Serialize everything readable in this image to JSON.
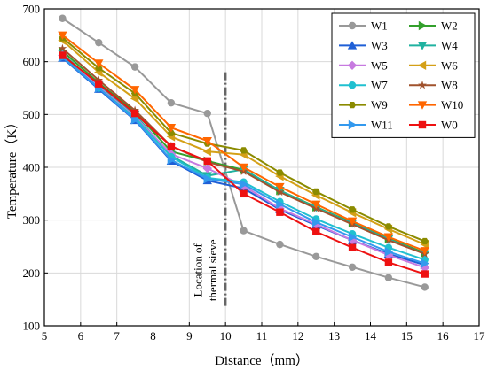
{
  "chart_data": {
    "type": "line",
    "xlabel": "Distance（mm）",
    "ylabel": "Temperature（K）",
    "xlim": [
      5,
      17
    ],
    "ylim": [
      100,
      700
    ],
    "xticks": [
      5,
      6,
      7,
      8,
      9,
      10,
      11,
      12,
      13,
      14,
      15,
      16,
      17
    ],
    "yticks": [
      100,
      200,
      300,
      400,
      500,
      600,
      700
    ],
    "grid": true,
    "legend_position": "top-right",
    "x": [
      5.5,
      6.5,
      7.5,
      8.5,
      9.5,
      10.5,
      11.5,
      12.5,
      13.5,
      14.5,
      15.5
    ],
    "series": [
      {
        "name": "W1",
        "color": "#999999",
        "marker": "circle",
        "values": [
          682,
          636,
          590,
          522,
          502,
          280,
          254,
          231,
          211,
          191,
          173
        ]
      },
      {
        "name": "W2",
        "color": "#33a02c",
        "marker": "triangle-right",
        "values": [
          620,
          560,
          505,
          430,
          412,
          395,
          356,
          325,
          295,
          265,
          238
        ]
      },
      {
        "name": "W3",
        "color": "#1f5fd6",
        "marker": "triangle-up",
        "values": [
          607,
          548,
          489,
          412,
          375,
          360,
          320,
          290,
          262,
          236,
          215
        ]
      },
      {
        "name": "W4",
        "color": "#20b2a0",
        "marker": "triangle-down",
        "values": [
          615,
          555,
          500,
          422,
          384,
          396,
          356,
          324,
          294,
          264,
          236
        ]
      },
      {
        "name": "W5",
        "color": "#c77ae0",
        "marker": "diamond",
        "values": [
          612,
          552,
          496,
          425,
          398,
          365,
          322,
          292,
          262,
          234,
          210
        ]
      },
      {
        "name": "W6",
        "color": "#d4a017",
        "marker": "triangle-left",
        "values": [
          640,
          580,
          530,
          458,
          430,
          424,
          383,
          347,
          314,
          283,
          254
        ]
      },
      {
        "name": "W7",
        "color": "#20c0d0",
        "marker": "circle",
        "values": [
          610,
          550,
          494,
          420,
          380,
          372,
          335,
          302,
          274,
          248,
          225
        ]
      },
      {
        "name": "W8",
        "color": "#a0522d",
        "marker": "star",
        "values": [
          625,
          565,
          508,
          440,
          410,
          392,
          353,
          322,
          292,
          262,
          236
        ]
      },
      {
        "name": "W9",
        "color": "#8b8b00",
        "marker": "hexagon",
        "values": [
          645,
          588,
          540,
          465,
          445,
          432,
          390,
          354,
          320,
          288,
          260
        ]
      },
      {
        "name": "W10",
        "color": "#ff6600",
        "marker": "triangle-down",
        "values": [
          650,
          597,
          547,
          475,
          450,
          400,
          363,
          330,
          298,
          268,
          242
        ]
      },
      {
        "name": "W11",
        "color": "#3399ee",
        "marker": "triangle-right",
        "values": [
          608,
          550,
          490,
          414,
          378,
          368,
          330,
          296,
          268,
          240,
          218
        ]
      },
      {
        "name": "W0",
        "color": "#ee1111",
        "marker": "square",
        "values": [
          612,
          558,
          502,
          440,
          412,
          350,
          315,
          278,
          248,
          220,
          198
        ]
      }
    ],
    "reference_line": {
      "x": 10,
      "y_from": 135,
      "y_to": 580
    },
    "annotations": [
      "Location of",
      "thermal sieve"
    ]
  }
}
